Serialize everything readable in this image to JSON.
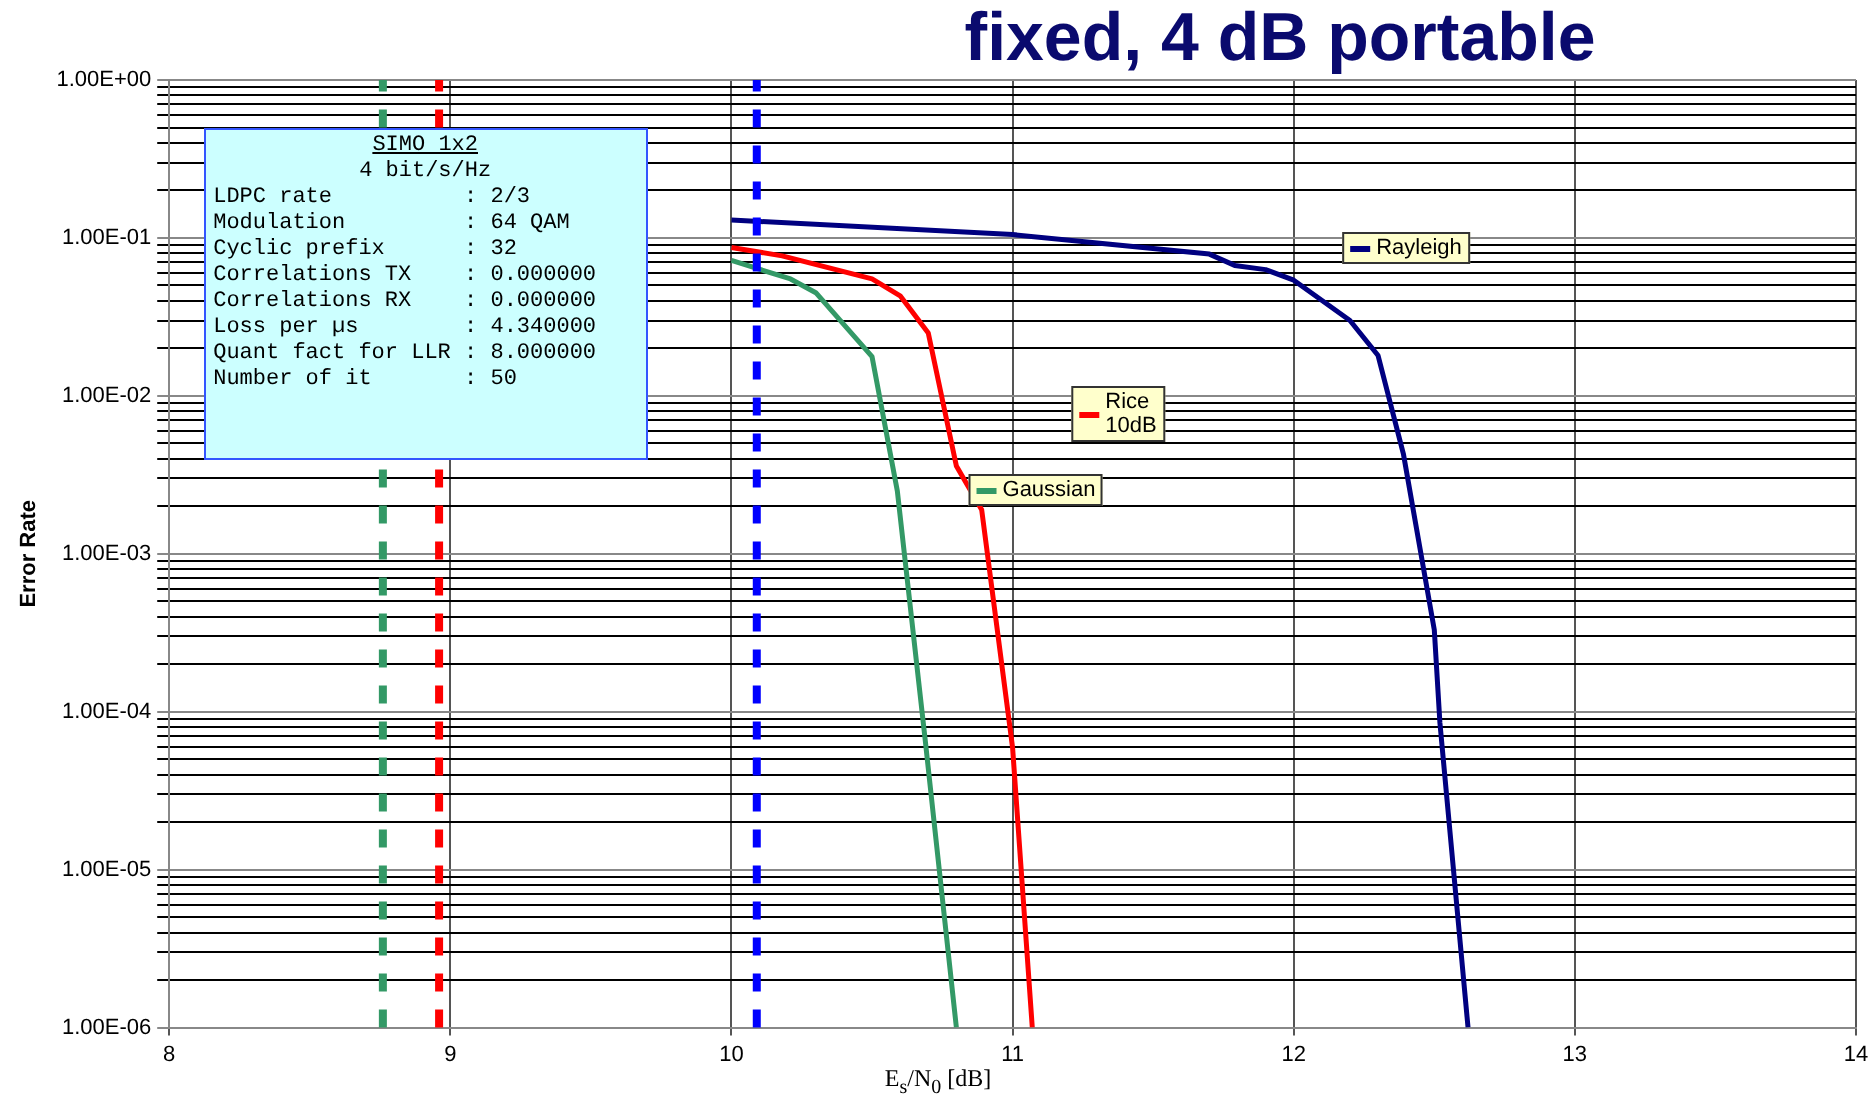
{
  "chart_data": {
    "type": "line",
    "title": "fixed, 4 dB portable",
    "xlabel": "E$_{s}$/N$_{0}$ [dB]",
    "ylabel": "Error Rate",
    "log": "y",
    "grid": true,
    "legend": "top right",
    "marker": "none",
    "line_style": "solid",
    "xlim": [
      8,
      14
    ],
    "xticks": [
      8,
      9,
      10,
      11,
      12,
      13,
      14
    ],
    "ylim": [
      1e-06,
      1
    ],
    "yticks": [
      {
        "value": 1e-06,
        "label": "1.00E-06"
      },
      {
        "value": 2e-06,
        "label": null
      },
      {
        "value": 3e-06,
        "label": null
      },
      {
        "value": 4e-06,
        "label": null
      },
      {
        "value": 5e-06,
        "label": null
      },
      {
        "value": 6e-06,
        "label": null
      },
      {
        "value": 7e-06,
        "label": null
      },
      {
        "value": 8e-06,
        "label": null
      },
      {
        "value": 9e-06,
        "label": null
      },
      {
        "value": 1e-05,
        "label": "1.00E-05"
      },
      {
        "value": 2e-05,
        "label": null
      },
      {
        "value": 3e-05,
        "label": null
      },
      {
        "value": 4e-05,
        "label": null
      },
      {
        "value": 5e-05,
        "label": null
      },
      {
        "value": 6e-05,
        "label": null
      },
      {
        "value": 7e-05,
        "label": null
      },
      {
        "value": 8e-05,
        "label": null
      },
      {
        "value": 9e-05,
        "label": null
      },
      {
        "value": 0.0001,
        "label": "1.00E-04"
      },
      {
        "value": 0.0002,
        "label": null
      },
      {
        "value": 0.0003,
        "label": null
      },
      {
        "value": 0.0004,
        "label": null
      },
      {
        "value": 0.0005,
        "label": null
      },
      {
        "value": 0.0006,
        "label": null
      },
      {
        "value": 0.0007,
        "label": null
      },
      {
        "value": 0.0008,
        "label": null
      },
      {
        "value": 0.0009,
        "label": null
      },
      {
        "value": 0.001,
        "label": "1.00E-03"
      },
      {
        "value": 0.002,
        "label": null
      },
      {
        "value": 0.003,
        "label": null
      },
      {
        "value": 0.004,
        "label": null
      },
      {
        "value": 0.005,
        "label": null
      },
      {
        "value": 0.006,
        "label": null
      },
      {
        "value": 0.007,
        "label": null
      },
      {
        "value": 0.008,
        "label": null
      },
      {
        "value": 0.009,
        "label": null
      },
      {
        "value": 0.01,
        "label": "1.00E-02"
      },
      {
        "value": 0.02,
        "label": null
      },
      {
        "value": 0.03,
        "label": null
      },
      {
        "value": 0.04,
        "label": null
      },
      {
        "value": 0.05,
        "label": null
      },
      {
        "value": 0.06,
        "label": null
      },
      {
        "value": 0.07,
        "label": null
      },
      {
        "value": 0.08,
        "label": null
      },
      {
        "value": 0.09,
        "label": null
      },
      {
        "value": 0.1,
        "label": "1.00E-01"
      },
      {
        "value": 0.2,
        "label": null
      },
      {
        "value": 0.3,
        "label": null
      },
      {
        "value": 0.4,
        "label": null
      },
      {
        "value": 0.5,
        "label": null
      },
      {
        "value": 0.6,
        "label": null
      },
      {
        "value": 0.7,
        "label": null
      },
      {
        "value": 0.8,
        "label": null
      },
      {
        "value": 0.9,
        "label": null
      },
      {
        "value": 1,
        "label": "1.00E+00"
      }
    ],
    "series": [
      {
        "name": "Rayleigh",
        "color": "#000080",
        "x": [
          10.0,
          11.0,
          11.7,
          11.79,
          11.9,
          12.0,
          12.2,
          12.3,
          12.39,
          12.5,
          12.52,
          12.62
        ],
        "values": [
          0.13,
          0.105,
          0.079,
          0.067,
          0.063,
          0.054,
          0.03,
          0.018,
          0.0043,
          0.00033,
          8.5e-05,
          1e-06
        ]
      },
      {
        "name": "Rice\n10dB",
        "color": "#ff0000",
        "x": [
          10.0,
          10.18,
          10.5,
          10.6,
          10.7,
          10.8,
          10.89,
          11.0,
          11.07
        ],
        "values": [
          0.087,
          0.077,
          0.055,
          0.043,
          0.025,
          0.0036,
          0.0019,
          5.9e-05,
          1e-06
        ]
      },
      {
        "name": "Gaussian",
        "color": "#339966",
        "x": [
          10.0,
          10.21,
          10.3,
          10.5,
          10.59,
          10.69,
          10.8
        ],
        "values": [
          0.072,
          0.055,
          0.045,
          0.0177,
          0.0025,
          6.4e-05,
          1e-06
        ]
      }
    ],
    "ref_lines": [
      {
        "axis": "x",
        "value": 8.76,
        "color": "#339966",
        "line_style": "dashed"
      },
      {
        "axis": "x",
        "value": 8.96,
        "color": "#ff0000",
        "line_style": "dashed"
      },
      {
        "axis": "x",
        "value": 10.09,
        "color": "#0000ff",
        "line_style": "dashed"
      }
    ],
    "annotations": [
      "SIMO 1x2\n4 bit/s/Hz\nLDPC rate          : 2/3\nModulation         : 64 QAM\nCyclic prefix      : 32\nCorrelations TX    : 0.000000\nCorrelations RX    : 0.000000\nLoss per µs        : 4.340000\nQuant fact for LLR : 8.000000\nNumber of it       : 50"
    ]
  }
}
